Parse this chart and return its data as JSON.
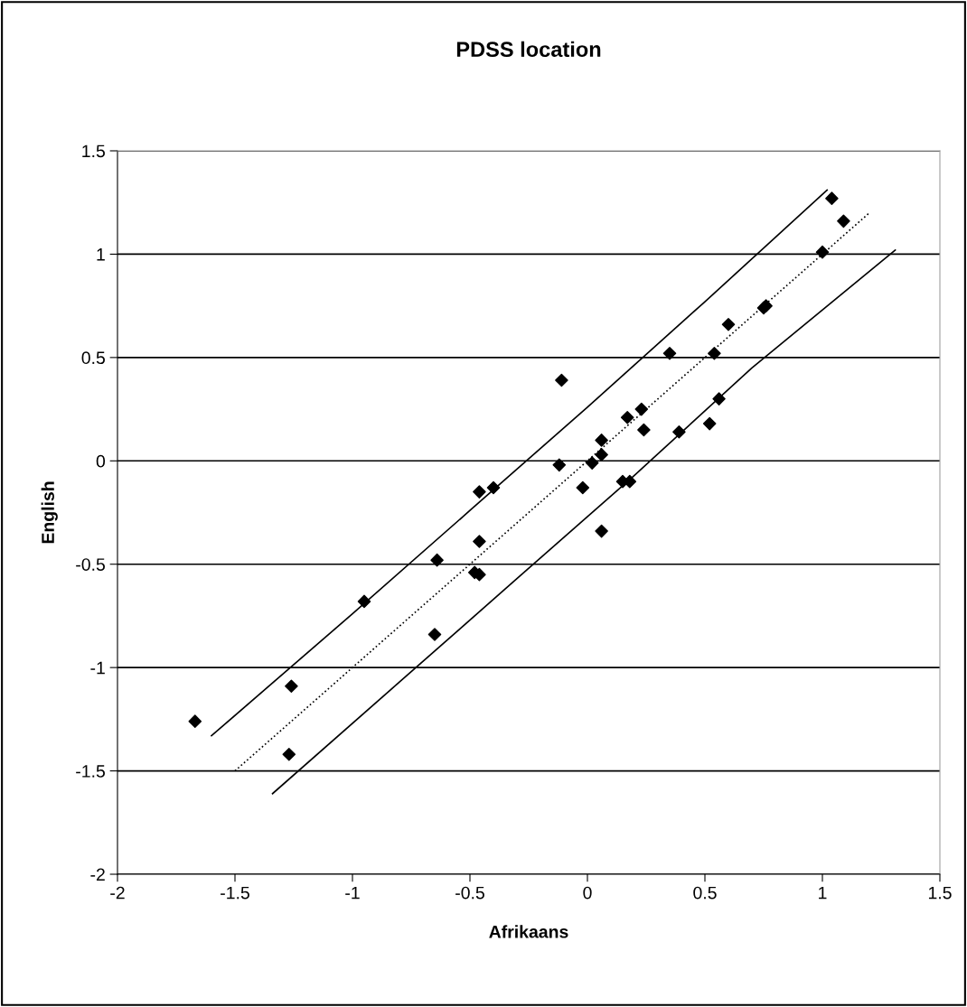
{
  "chart_data": {
    "type": "scatter",
    "title": "PDSS location",
    "xlabel": "Afrikaans",
    "ylabel": "English",
    "xlim": [
      -2,
      1.5
    ],
    "xticks": [
      -2,
      -1.5,
      -1,
      -0.5,
      0,
      0.5,
      1,
      1.5
    ],
    "ylim": [
      -2,
      1.5
    ],
    "yticks": [
      -2,
      -1.5,
      -1,
      -0.5,
      0,
      0.5,
      1,
      1.5
    ],
    "grid": "y",
    "legend": false,
    "series": [
      {
        "marker": "diamond",
        "color": "#000000",
        "x": [
          -1.67,
          -1.26,
          -1.27,
          -0.95,
          -0.11,
          0.35,
          -0.46,
          -0.4,
          -0.12,
          0.02,
          0.06,
          0.06,
          -0.02,
          0.17,
          0.23,
          0.24,
          0.15,
          0.18,
          0.06,
          0.39,
          -0.46,
          -0.64,
          -0.48,
          -0.46,
          -0.65,
          1.04,
          1.09,
          1.0,
          0.75,
          0.76,
          0.6,
          0.54,
          0.56,
          0.52
        ],
        "values": [
          -1.26,
          -1.09,
          -1.42,
          -0.68,
          0.39,
          0.52,
          -0.15,
          -0.13,
          -0.02,
          -0.01,
          0.03,
          0.1,
          -0.13,
          0.21,
          0.25,
          0.15,
          -0.1,
          -0.1,
          -0.34,
          0.14,
          -0.39,
          -0.48,
          -0.54,
          -0.55,
          -0.84,
          1.27,
          1.16,
          1.01,
          0.74,
          0.75,
          0.66,
          0.52,
          0.3,
          0.18
        ]
      },
      {
        "type": "line",
        "line_style": "dotted",
        "color": "#000000",
        "marker": "none",
        "x": [
          -1.5,
          1.2
        ],
        "values": [
          -1.5,
          1.2
        ]
      },
      {
        "type": "line",
        "line_style": "solid",
        "color": "#000000",
        "marker": "none",
        "x": [
          -1.6,
          -1.0,
          -0.5,
          0,
          0.5,
          1.02
        ],
        "values": [
          -1.33,
          -0.74,
          -0.24,
          0.26,
          0.77,
          1.31
        ]
      },
      {
        "type": "line",
        "line_style": "solid",
        "color": "#000000",
        "marker": "none",
        "x": [
          -1.34,
          -0.8,
          -0.3,
          0.2,
          0.7,
          1.31
        ],
        "values": [
          -1.61,
          -1.07,
          -0.57,
          -0.07,
          0.45,
          1.02
        ]
      }
    ]
  }
}
